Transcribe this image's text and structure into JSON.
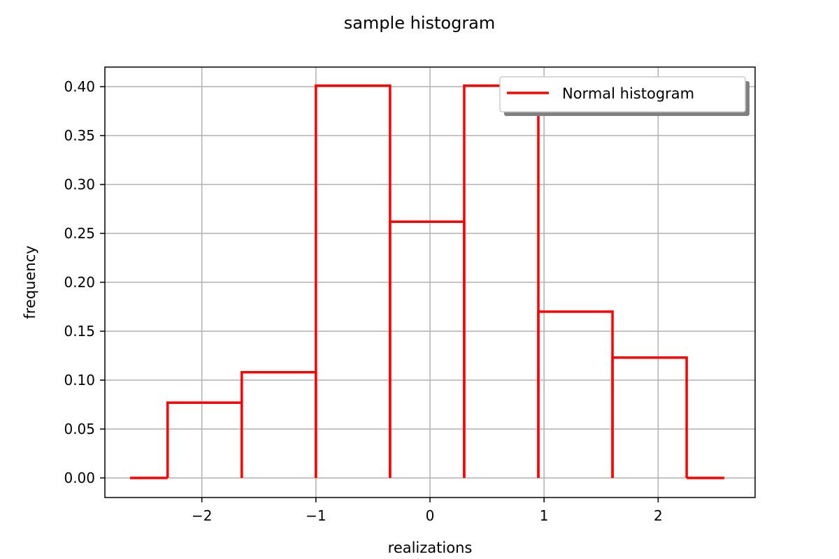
{
  "chart_data": {
    "type": "line",
    "drawstyle": "steps",
    "title": "sample histogram",
    "xlabel": "realizations",
    "ylabel": "frequency",
    "xlim": [
      -2.85,
      2.85
    ],
    "ylim": [
      -0.02,
      0.42
    ],
    "xticks": [
      -2,
      -1,
      0,
      1,
      2
    ],
    "xtick_labels": [
      "−2",
      "−1",
      "0",
      "1",
      "2"
    ],
    "yticks": [
      0.0,
      0.05,
      0.1,
      0.15,
      0.2,
      0.25,
      0.3,
      0.35,
      0.4
    ],
    "ytick_labels": [
      "0.00",
      "0.05",
      "0.10",
      "0.15",
      "0.20",
      "0.25",
      "0.30",
      "0.35",
      "0.40"
    ],
    "grid": true,
    "legend_position": "top-right",
    "series": [
      {
        "name": "Normal histogram",
        "color": "#ff0000",
        "bin_edges": [
          -2.3,
          -1.65,
          -1.0,
          -0.35,
          0.3,
          0.95,
          1.6,
          2.25
        ],
        "values": [
          0.077,
          0.108,
          0.401,
          0.262,
          0.401,
          0.17,
          0.123
        ],
        "baseline_extent": [
          -2.63,
          2.58
        ]
      }
    ]
  }
}
